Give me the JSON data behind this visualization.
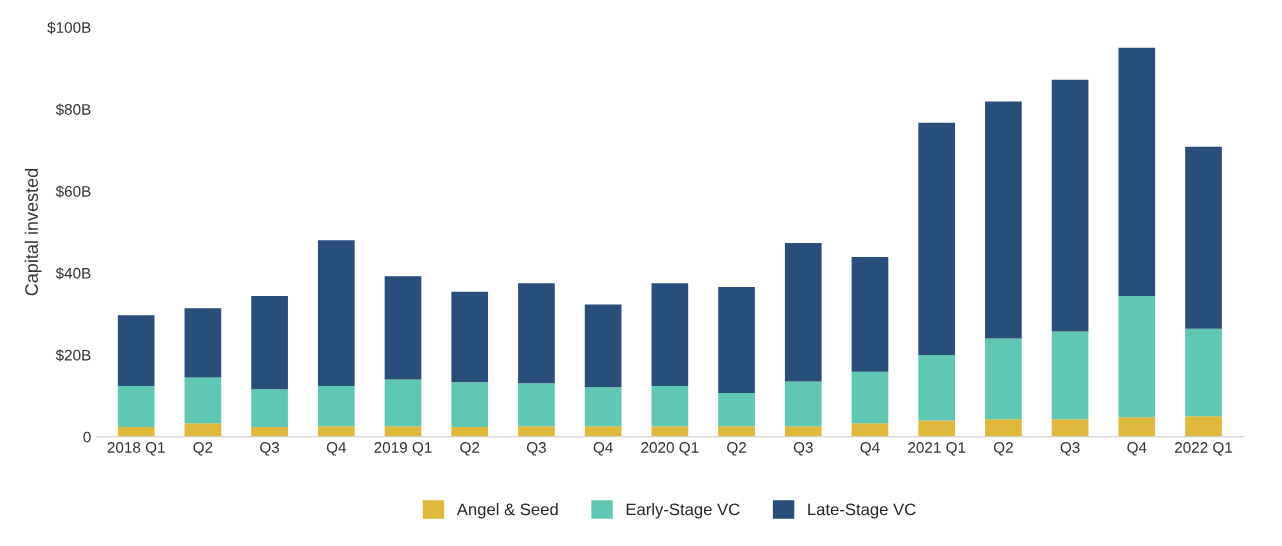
{
  "chart_data": {
    "type": "bar",
    "stacked": true,
    "ylabel": "Capital invested",
    "categories": [
      "2018 Q1",
      "Q2",
      "Q3",
      "Q4",
      "2019 Q1",
      "Q2",
      "Q3",
      "Q4",
      "2020 Q1",
      "Q2",
      "Q3",
      "Q4",
      "2021 Q1",
      "Q2",
      "Q3",
      "Q4",
      "2022 Q1"
    ],
    "series": [
      {
        "name": "Angel & Seed",
        "color": "#e0b83c",
        "values": [
          2.4,
          3.3,
          2.4,
          2.6,
          2.6,
          2.4,
          2.6,
          2.6,
          2.6,
          2.6,
          2.6,
          3.3,
          4.0,
          4.3,
          4.3,
          4.8,
          5.0
        ]
      },
      {
        "name": "Early-Stage VC",
        "color": "#5ec8b4",
        "values": [
          10.0,
          11.2,
          9.2,
          9.8,
          11.4,
          10.9,
          10.5,
          9.5,
          9.8,
          8.1,
          10.9,
          12.6,
          16.0,
          19.7,
          21.4,
          29.6,
          21.4
        ]
      },
      {
        "name": "Late-Stage VC",
        "color": "#284f7c",
        "values": [
          17.3,
          16.9,
          22.8,
          35.6,
          25.2,
          22.1,
          24.4,
          20.2,
          25.1,
          25.9,
          33.8,
          28.0,
          56.7,
          57.9,
          61.5,
          60.6,
          44.4
        ]
      }
    ],
    "ylim": [
      0,
      100
    ],
    "yticks": [
      {
        "value": 0,
        "label": "0"
      },
      {
        "value": 20,
        "label": "$20B"
      },
      {
        "value": 40,
        "label": "$40B"
      },
      {
        "value": 60,
        "label": "$60B"
      },
      {
        "value": 80,
        "label": "$80B"
      },
      {
        "value": 100,
        "label": "$100B"
      }
    ],
    "legend": "bottom",
    "grid": false
  }
}
